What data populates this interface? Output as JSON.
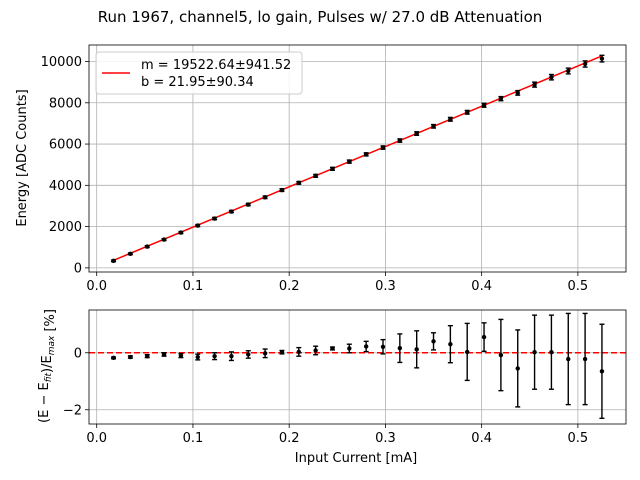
{
  "chart_data": [
    {
      "type": "scatter",
      "title": "Run 1967, channel5, lo gain, Pulses w/ 27.0 dB Attenuation",
      "xlabel": "",
      "ylabel": "Energy [ADC Counts]",
      "xlim": [
        -0.008,
        0.55
      ],
      "ylim": [
        -200,
        10800
      ],
      "grid": true,
      "legend": {
        "placement": "top-left",
        "line1": "m = 19522.64±941.52",
        "line2": "b = 21.95±90.34"
      },
      "xticks": [
        0.0,
        0.1,
        0.2,
        0.3,
        0.4,
        0.5
      ],
      "xtick_labels": [
        "0.0",
        "0.1",
        "0.2",
        "0.3",
        "0.4",
        "0.5"
      ],
      "yticks": [
        0,
        2000,
        4000,
        6000,
        8000,
        10000
      ],
      "ytick_labels": [
        "0",
        "2000",
        "4000",
        "6000",
        "8000",
        "10000"
      ],
      "fit": {
        "slope": 19522.64,
        "intercept": 21.95,
        "color": "#ff0000"
      },
      "x": [
        0.0175,
        0.035,
        0.0525,
        0.07,
        0.0875,
        0.105,
        0.1225,
        0.14,
        0.1575,
        0.175,
        0.1925,
        0.21,
        0.2275,
        0.245,
        0.2625,
        0.28,
        0.2975,
        0.315,
        0.3325,
        0.35,
        0.3675,
        0.385,
        0.4025,
        0.42,
        0.4375,
        0.455,
        0.4725,
        0.49,
        0.5075,
        0.525
      ],
      "y": [
        340,
        680,
        1030,
        1370,
        1710,
        2050,
        2390,
        2730,
        3070,
        3420,
        3770,
        4120,
        4460,
        4800,
        5150,
        5500,
        5830,
        6170,
        6510,
        6860,
        7200,
        7540,
        7880,
        8200,
        8480,
        8880,
        9240,
        9540,
        9880,
        10140
      ],
      "yerr": [
        40,
        40,
        45,
        45,
        50,
        50,
        55,
        55,
        60,
        60,
        65,
        65,
        70,
        70,
        75,
        75,
        80,
        80,
        85,
        85,
        90,
        90,
        95,
        100,
        110,
        120,
        130,
        140,
        150,
        160
      ]
    },
    {
      "type": "scatter",
      "title": "",
      "xlabel": "Input Current [mA]",
      "ylabel": "(E − E_fit)/E_max [%]",
      "xlim": [
        -0.008,
        0.55
      ],
      "ylim": [
        -2.5,
        1.5
      ],
      "grid": true,
      "reference_line": {
        "y": 0,
        "style": "dashed",
        "color": "#ff0000"
      },
      "xticks": [
        0.0,
        0.1,
        0.2,
        0.3,
        0.4,
        0.5
      ],
      "xtick_labels": [
        "0.0",
        "0.1",
        "0.2",
        "0.3",
        "0.4",
        "0.5"
      ],
      "yticks": [
        -2,
        0
      ],
      "ytick_labels": [
        "−2",
        "0"
      ],
      "x": [
        0.0175,
        0.035,
        0.0525,
        0.07,
        0.0875,
        0.105,
        0.1225,
        0.14,
        0.1575,
        0.175,
        0.1925,
        0.21,
        0.2275,
        0.245,
        0.2625,
        0.28,
        0.2975,
        0.315,
        0.3325,
        0.35,
        0.3675,
        0.385,
        0.4025,
        0.42,
        0.4375,
        0.455,
        0.4725,
        0.49,
        0.5075,
        0.525
      ],
      "y": [
        -0.18,
        -0.15,
        -0.12,
        -0.06,
        -0.1,
        -0.15,
        -0.12,
        -0.12,
        -0.06,
        -0.02,
        0.02,
        0.03,
        0.08,
        0.15,
        0.15,
        0.22,
        0.21,
        0.16,
        0.12,
        0.4,
        0.3,
        0.03,
        0.55,
        -0.08,
        -0.55,
        0.02,
        0.02,
        -0.22,
        -0.22,
        -0.65
      ],
      "yerr": [
        0.03,
        0.04,
        0.05,
        0.06,
        0.07,
        0.1,
        0.12,
        0.15,
        0.13,
        0.15,
        0.06,
        0.15,
        0.15,
        0.05,
        0.15,
        0.18,
        0.25,
        0.5,
        0.65,
        0.3,
        0.65,
        1.0,
        0.5,
        1.25,
        1.35,
        1.3,
        1.3,
        1.6,
        1.6,
        1.65
      ]
    }
  ]
}
